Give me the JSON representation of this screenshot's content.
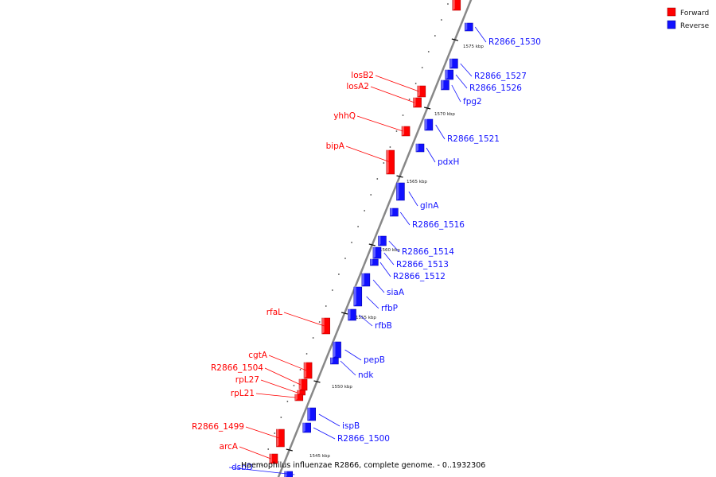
{
  "caption": "Haemophilus influenzae R2866, complete genome. - 0..1932306",
  "colors": {
    "forward": "#ff0000",
    "reverse": "#1111ff",
    "backbone": "#888888"
  },
  "legend": [
    {
      "key": "forward",
      "label": "Forward"
    },
    {
      "key": "reverse",
      "label": "Reverse"
    }
  ],
  "ticks": [
    "1575 kbp",
    "1570 kbp",
    "1565 kbp",
    "1560 kbp",
    "1555 kbp",
    "1550 kbp",
    "1545 kbp"
  ],
  "genes": [
    {
      "name": "R2866_1530",
      "strand": "reverse"
    },
    {
      "name": "R2866_1527",
      "strand": "reverse"
    },
    {
      "name": "R2866_1526",
      "strand": "reverse"
    },
    {
      "name": "fpg2",
      "strand": "reverse"
    },
    {
      "name": "losB2",
      "strand": "forward"
    },
    {
      "name": "losA2",
      "strand": "forward"
    },
    {
      "name": "yhhQ",
      "strand": "forward"
    },
    {
      "name": "R2866_1521",
      "strand": "reverse"
    },
    {
      "name": "bipA",
      "strand": "forward"
    },
    {
      "name": "pdxH",
      "strand": "reverse"
    },
    {
      "name": "glnA",
      "strand": "reverse"
    },
    {
      "name": "R2866_1516",
      "strand": "reverse"
    },
    {
      "name": "R2866_1514",
      "strand": "reverse"
    },
    {
      "name": "R2866_1513",
      "strand": "reverse"
    },
    {
      "name": "R2866_1512",
      "strand": "reverse"
    },
    {
      "name": "siaA",
      "strand": "reverse"
    },
    {
      "name": "rfbP",
      "strand": "reverse"
    },
    {
      "name": "rfbB",
      "strand": "reverse"
    },
    {
      "name": "rfaL",
      "strand": "forward"
    },
    {
      "name": "pepB",
      "strand": "reverse"
    },
    {
      "name": "ndk",
      "strand": "reverse"
    },
    {
      "name": "cgtA",
      "strand": "forward"
    },
    {
      "name": "R2866_1504",
      "strand": "forward"
    },
    {
      "name": "rpL27",
      "strand": "forward"
    },
    {
      "name": "rpL21",
      "strand": "forward"
    },
    {
      "name": "R2866_1499",
      "strand": "forward"
    },
    {
      "name": "ispB",
      "strand": "reverse"
    },
    {
      "name": "R2866_1500",
      "strand": "reverse"
    },
    {
      "name": "arcA",
      "strand": "forward"
    },
    {
      "name": "dsbD",
      "strand": "reverse"
    }
  ]
}
